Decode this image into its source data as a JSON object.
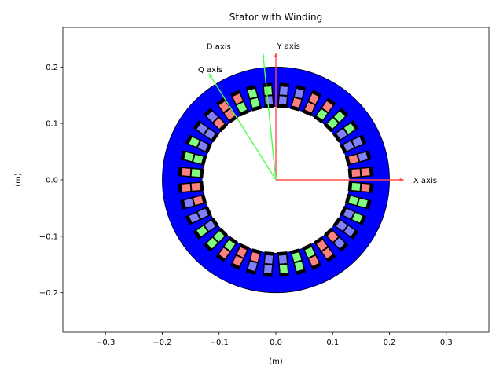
{
  "chart_data": {
    "type": "diagram",
    "title": "Stator with Winding",
    "xlabel": "(m)",
    "ylabel": "(m)",
    "xlim": [
      -0.375,
      0.375
    ],
    "ylim": [
      -0.27,
      0.27
    ],
    "xticks": [
      -0.3,
      -0.2,
      -0.1,
      0.0,
      0.1,
      0.2,
      0.3
    ],
    "xtick_labels": [
      "−0.3",
      "−0.2",
      "−0.1",
      "0.0",
      "0.1",
      "0.2",
      "0.3"
    ],
    "yticks": [
      -0.2,
      -0.1,
      0.0,
      0.1,
      0.2
    ],
    "ytick_labels": [
      "−0.2",
      "−0.1",
      "0.0",
      "0.1",
      "0.2"
    ],
    "grid": false,
    "stator": {
      "outer_radius": 0.2,
      "inner_radius": 0.13,
      "color": "#0000ff",
      "edge_color": "#000000"
    },
    "winding": {
      "slots": 36,
      "slot_color": "#000000",
      "coil_pattern": [
        "#ff8080",
        "#ff8080",
        "#8080ff",
        "#8080ff",
        "#80ff80",
        "#80ff80"
      ],
      "coil_r_inner": [
        0.134,
        0.149
      ],
      "coil_r_outer": [
        0.151,
        0.166
      ]
    },
    "annotations": [
      {
        "label": "X axis",
        "angle_deg": 0,
        "length": 0.225,
        "text_x": 0.242,
        "text_y": 0.0,
        "color": "#ff4d4d"
      },
      {
        "label": "Y axis",
        "angle_deg": 90,
        "length": 0.225,
        "text_x": 0.002,
        "text_y": 0.238,
        "color": "#ff4d4d"
      },
      {
        "label": "D axis",
        "angle_deg": 95.8,
        "length": 0.225,
        "text_x": -0.122,
        "text_y": 0.237,
        "color": "#4dff4d"
      },
      {
        "label": "Q axis",
        "angle_deg": 122,
        "length": 0.222,
        "text_x": -0.137,
        "text_y": 0.196,
        "color": "#4dff4d"
      }
    ]
  }
}
